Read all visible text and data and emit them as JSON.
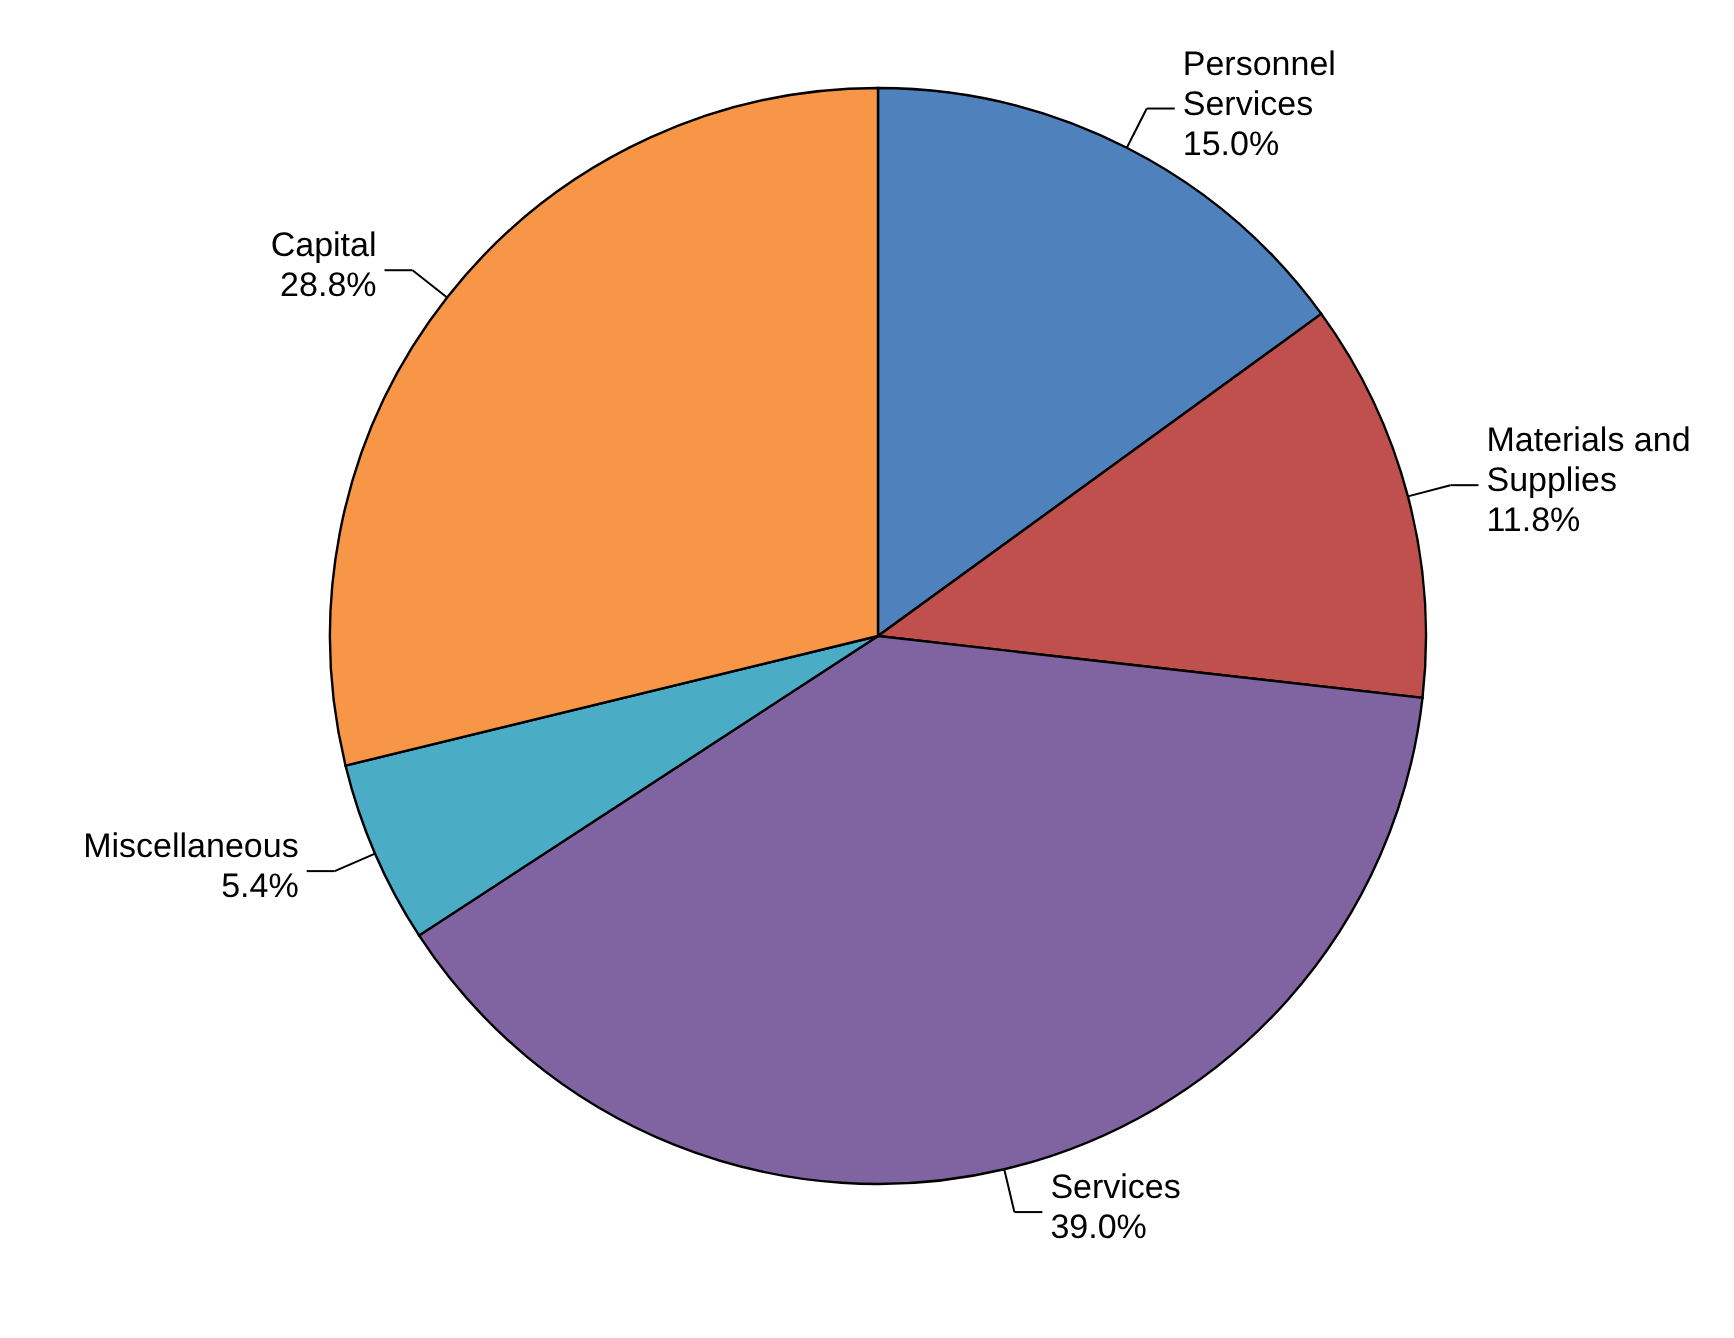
{
  "chart_data": {
    "type": "pie",
    "categories": [
      "Personnel Services",
      "Materials and Supplies",
      "Services",
      "Miscellaneous",
      "Capital"
    ],
    "values": [
      15.0,
      11.8,
      39.0,
      5.4,
      28.8
    ],
    "colors": [
      "#4f81bd",
      "#c0504d",
      "#8064a2",
      "#4bacc6",
      "#f79646"
    ],
    "value_labels": [
      "15.0%",
      "11.8%",
      "39.0%",
      "5.4%",
      "28.8%"
    ]
  }
}
